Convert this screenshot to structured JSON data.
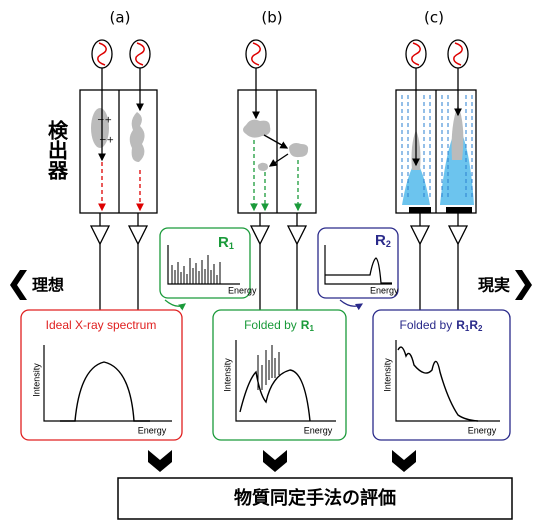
{
  "column_labels": [
    "(a)",
    "(b)",
    "(c)"
  ],
  "detector_label": "検出器",
  "responses": [
    {
      "symbol": "R",
      "sub": "1",
      "axis_label": "Energy"
    },
    {
      "symbol": "R",
      "sub": "2",
      "axis_label": "Energy"
    }
  ],
  "ideal_label": "理想",
  "real_label": "現実",
  "panels": [
    {
      "title": "Ideal X-ray spectrum",
      "y_label": "Intensity",
      "x_label": "Energy"
    },
    {
      "title": "Folded by",
      "symbols": [
        {
          "main": "R",
          "sub": "1"
        }
      ],
      "y_label": "Intensity",
      "x_label": "Energy"
    },
    {
      "title": "Folded by",
      "symbols": [
        {
          "main": "R",
          "sub": "1"
        },
        {
          "main": "R",
          "sub": "2"
        }
      ],
      "y_label": "Intensity",
      "x_label": "Energy"
    }
  ],
  "footer": "物質同定手法の評価"
}
